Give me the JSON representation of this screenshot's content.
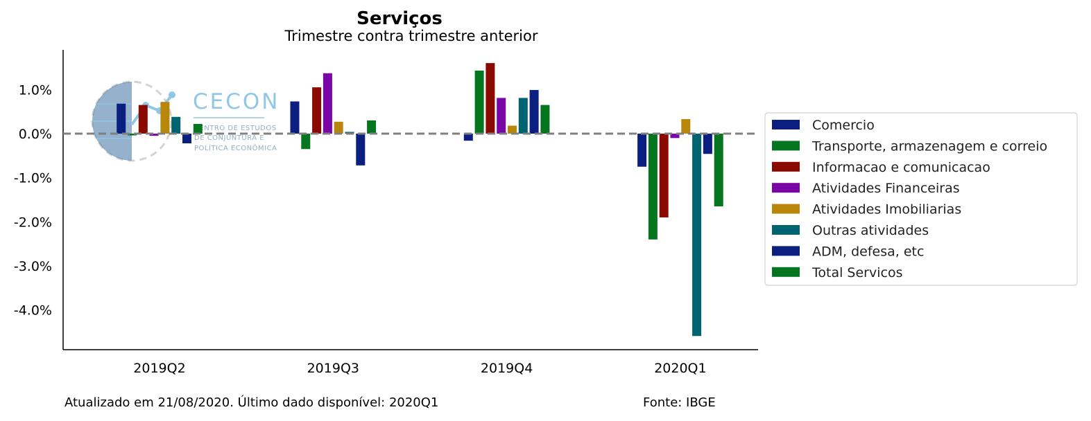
{
  "chart_data": {
    "type": "bar",
    "title": "Serviços",
    "subtitle": "Trimestre contra trimestre anterior",
    "categories": [
      "2019Q2",
      "2019Q3",
      "2019Q4",
      "2020Q1"
    ],
    "ylim": [
      -4.9,
      1.9
    ],
    "yticks": [
      1.0,
      0.0,
      -1.0,
      -2.0,
      -3.0,
      -4.0
    ],
    "ytick_labels": [
      "1.0%",
      "0.0%",
      "-1.0%",
      "-2.0%",
      "-3.0%",
      "-4.0%"
    ],
    "zero_line": true,
    "grid": false,
    "legend_position": "right",
    "series": [
      {
        "name": "Comercio",
        "color": "#0a1f80",
        "values": [
          0.68,
          0.73,
          -0.16,
          -0.75
        ]
      },
      {
        "name": "Transporte, armazenagem e correio",
        "color": "#057520",
        "values": [
          -0.04,
          -0.35,
          1.43,
          -2.4
        ]
      },
      {
        "name": "Informacao e comunicacao",
        "color": "#8b0a00",
        "values": [
          0.65,
          1.05,
          1.6,
          -1.9
        ]
      },
      {
        "name": "Atividades Financeiras",
        "color": "#7a06a6",
        "values": [
          -0.05,
          1.37,
          0.81,
          -0.1
        ]
      },
      {
        "name": "Atividades Imobiliarias",
        "color": "#b8860b",
        "values": [
          0.72,
          0.27,
          0.18,
          0.33
        ]
      },
      {
        "name": "Outras atividades",
        "color": "#006370",
        "values": [
          0.38,
          0.04,
          0.81,
          -4.59
        ]
      },
      {
        "name": "ADM, defesa, etc",
        "color": "#0a1f80",
        "values": [
          -0.22,
          -0.72,
          0.99,
          -0.46
        ]
      },
      {
        "name": "Total Servicos",
        "color": "#057520",
        "values": [
          0.22,
          0.3,
          0.65,
          -1.65
        ]
      }
    ]
  },
  "footer": {
    "updated": "Atualizado em 21/08/2020. Último dado disponível: 2020Q1",
    "source": "Fonte: IBGE"
  },
  "logo": {
    "name": "CECON",
    "line1": "CENTRO DE ESTUDOS",
    "line2": "DE CONJUNTURA E",
    "line3": "POLÍTICA ECONÔMICA"
  }
}
